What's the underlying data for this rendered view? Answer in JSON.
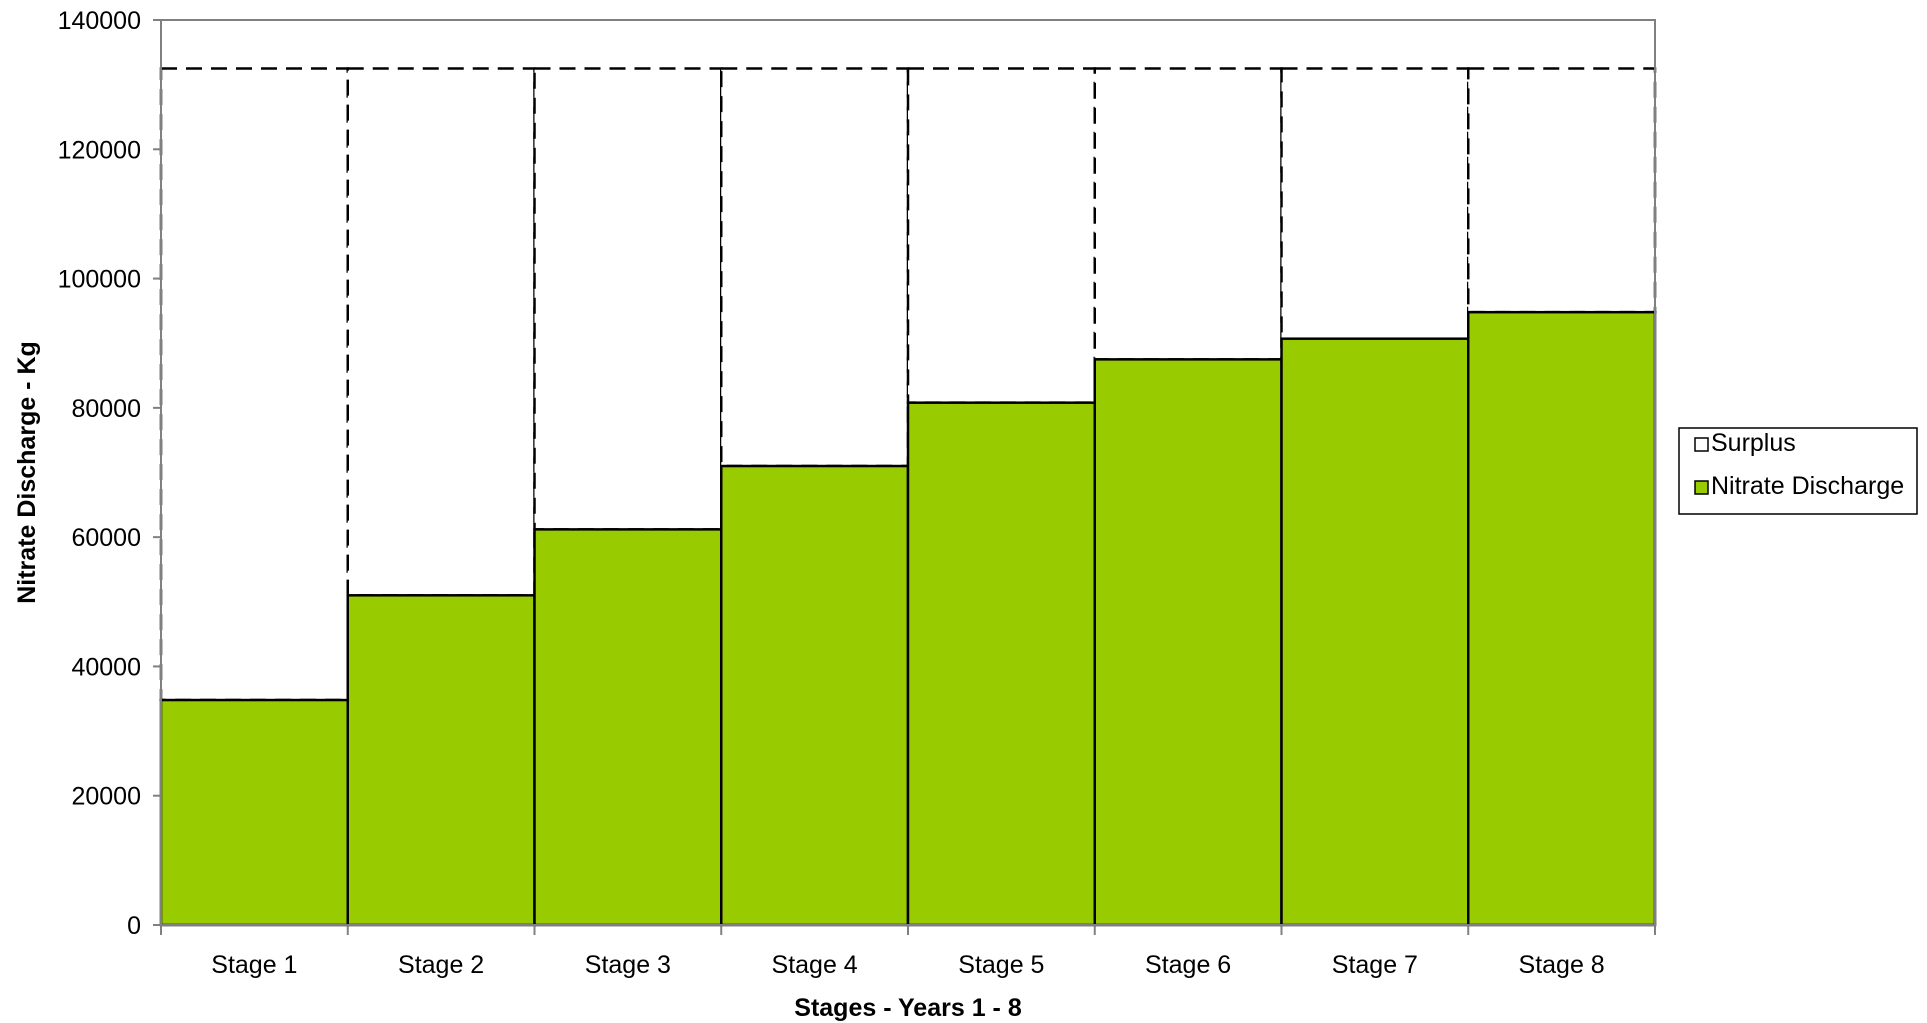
{
  "chart_data": {
    "type": "bar",
    "stacked": true,
    "title": "",
    "xlabel": "Stages - Years 1 - 8",
    "ylabel": "Nitrate Discharge - Kg",
    "ylim": [
      0,
      140000
    ],
    "yticks": [
      0,
      20000,
      40000,
      60000,
      80000,
      100000,
      120000,
      140000
    ],
    "grid": false,
    "legend_position": "right",
    "categories": [
      "Stage 1",
      "Stage 2",
      "Stage 3",
      "Stage 4",
      "Stage 5",
      "Stage 6",
      "Stage 7",
      "Stage 8"
    ],
    "series": [
      {
        "name": "Nitrate Discharge",
        "color": "#99CC00",
        "values": [
          34800,
          51000,
          61200,
          71000,
          80800,
          87500,
          90700,
          94800
        ]
      },
      {
        "name": "Surplus",
        "color": "#FFFFFF",
        "border": "dashed",
        "values": [
          97700,
          81500,
          71300,
          61500,
          51700,
          45000,
          41800,
          37700
        ]
      }
    ],
    "legend": [
      "Surplus",
      "Nitrate Discharge"
    ]
  }
}
